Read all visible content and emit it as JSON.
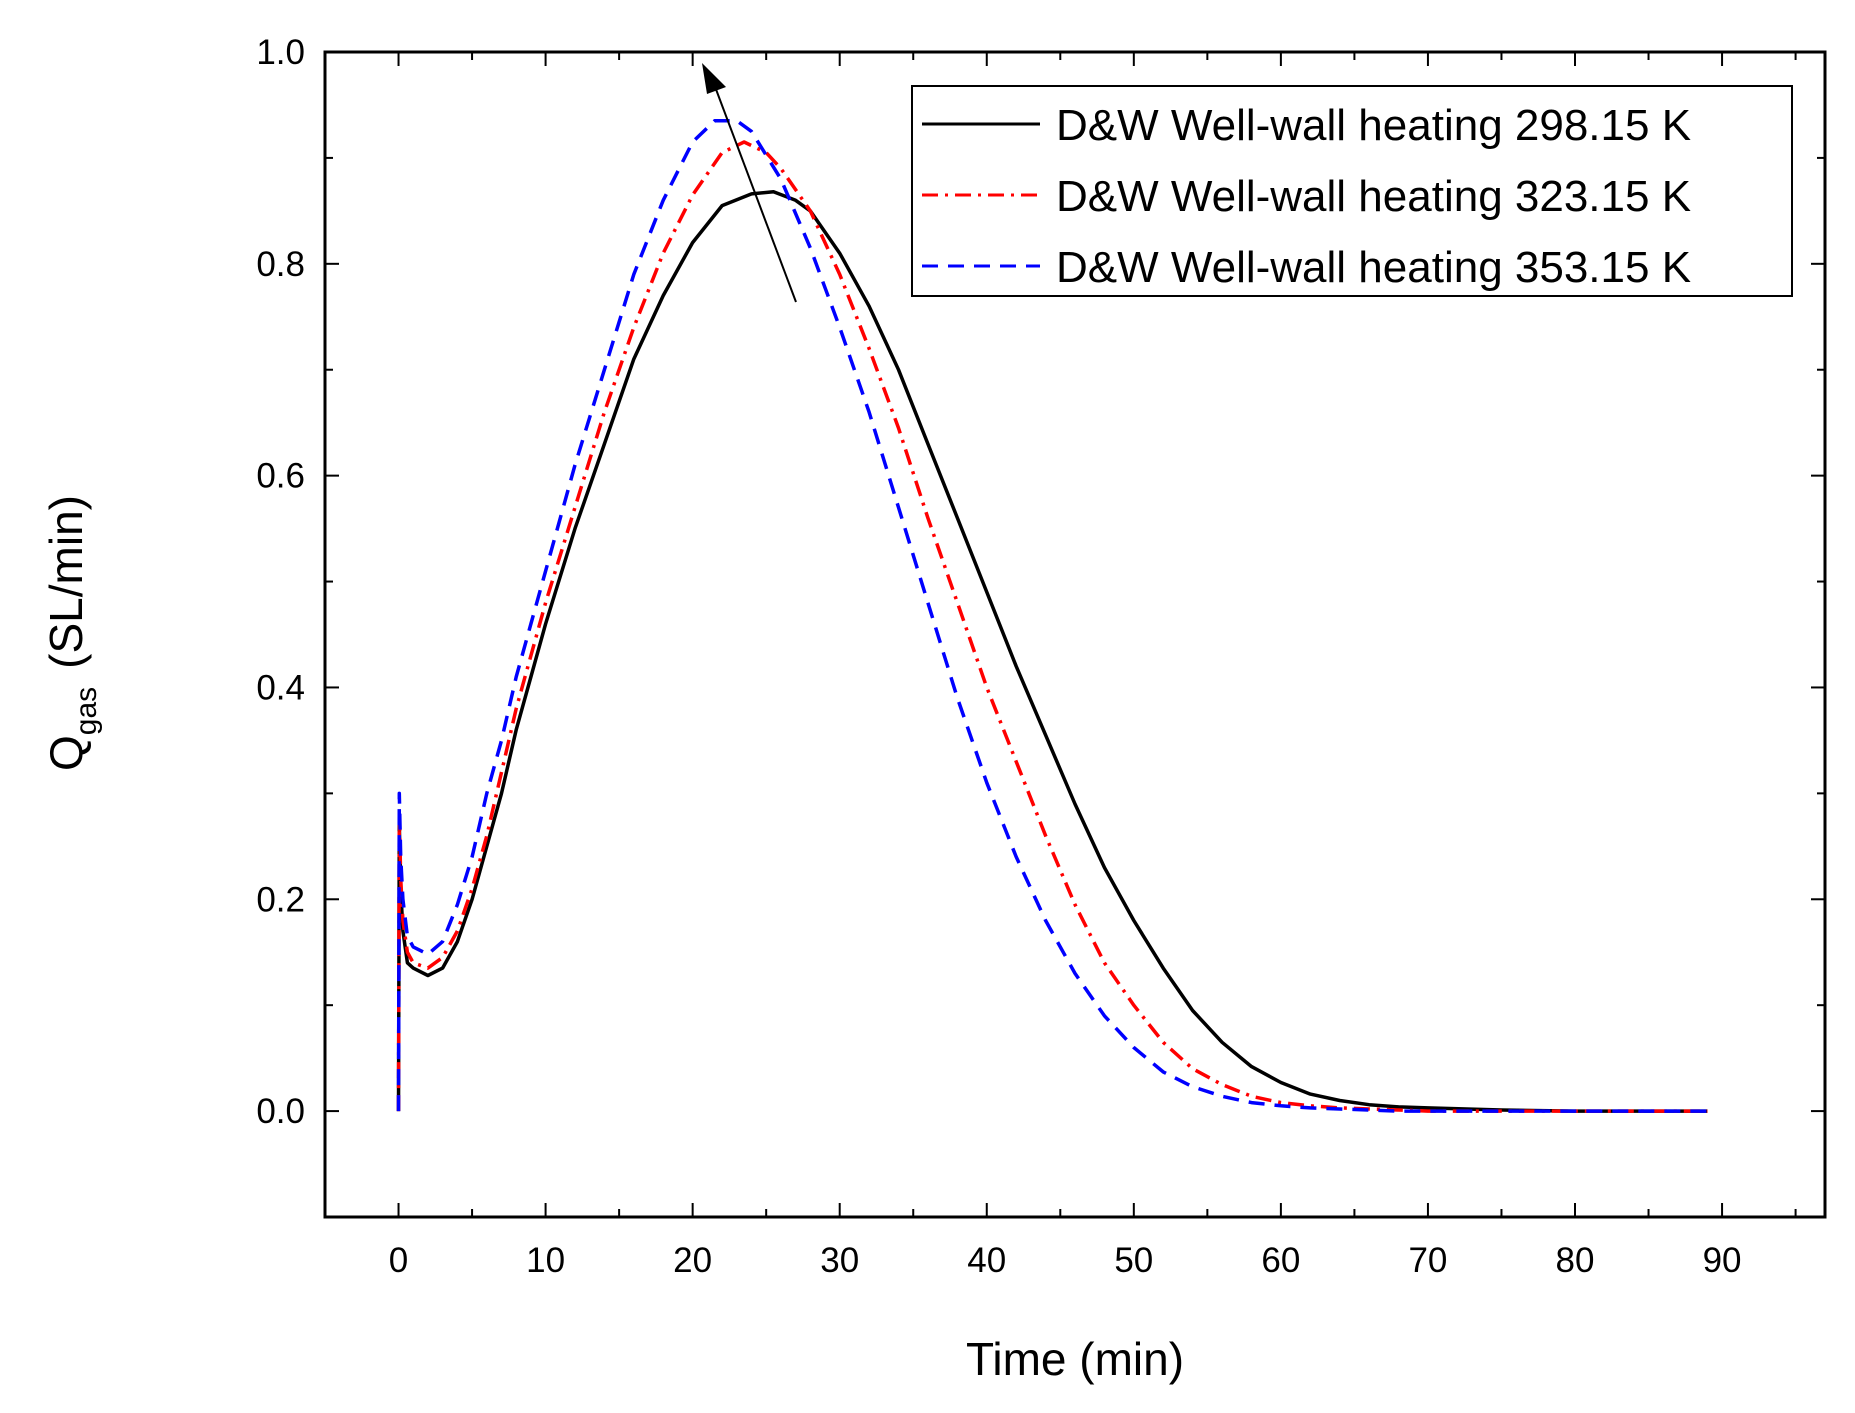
{
  "chart_data": {
    "type": "line",
    "title": "",
    "xlabel": "Time (min)",
    "ylabel_main": "Q",
    "ylabel_sub": "gas",
    "ylabel_unit": "(SL/min)",
    "xlim": [
      -5,
      97
    ],
    "ylim": [
      -0.1,
      1.0
    ],
    "xticks": [
      0,
      10,
      20,
      30,
      40,
      50,
      60,
      70,
      80,
      90
    ],
    "xtick_labels": [
      "0",
      "10",
      "20",
      "30",
      "40",
      "50",
      "60",
      "70",
      "80",
      "90"
    ],
    "yticks": [
      0.0,
      0.2,
      0.4,
      0.6,
      0.8,
      1.0
    ],
    "ytick_labels": [
      "0.0",
      "0.2",
      "0.4",
      "0.6",
      "0.8",
      "1.0"
    ],
    "legend_position": "top-right",
    "annotation": "arrow indicating increasing peak with heating temperature",
    "series": [
      {
        "name": "D&W Well-wall heating 298.15 K",
        "color": "#000000",
        "style": "solid",
        "x": [
          0,
          0.05,
          0.15,
          0.3,
          0.6,
          1,
          2,
          3,
          4,
          5,
          6,
          7,
          8,
          9,
          10,
          12,
          14,
          16,
          18,
          20,
          22,
          24,
          25.5,
          27,
          28,
          30,
          32,
          34,
          36,
          38,
          40,
          42,
          44,
          46,
          48,
          50,
          52,
          54,
          56,
          58,
          60,
          62,
          64,
          66,
          68,
          70,
          75,
          80,
          85,
          89
        ],
        "y": [
          0,
          0.27,
          0.21,
          0.17,
          0.14,
          0.135,
          0.128,
          0.135,
          0.16,
          0.2,
          0.25,
          0.3,
          0.36,
          0.41,
          0.46,
          0.55,
          0.63,
          0.71,
          0.77,
          0.82,
          0.855,
          0.866,
          0.868,
          0.86,
          0.85,
          0.81,
          0.76,
          0.7,
          0.63,
          0.56,
          0.49,
          0.42,
          0.355,
          0.29,
          0.23,
          0.18,
          0.135,
          0.095,
          0.065,
          0.042,
          0.027,
          0.016,
          0.01,
          0.006,
          0.004,
          0.003,
          0.001,
          0,
          0,
          0
        ]
      },
      {
        "name": "D&W Well-wall heating 323.15 K",
        "color": "#ff0000",
        "style": "dashdot",
        "x": [
          0,
          0.05,
          0.15,
          0.3,
          0.6,
          1,
          2,
          3,
          4,
          5,
          6,
          7,
          8,
          9,
          10,
          12,
          14,
          16,
          18,
          20,
          22,
          23.5,
          25,
          26,
          28,
          30,
          32,
          34,
          36,
          38,
          40,
          42,
          44,
          46,
          48,
          50,
          52,
          54,
          56,
          58,
          60,
          62,
          64,
          66,
          68,
          70,
          75,
          80,
          85,
          89
        ],
        "y": [
          0,
          0.28,
          0.22,
          0.18,
          0.15,
          0.14,
          0.135,
          0.145,
          0.17,
          0.21,
          0.26,
          0.32,
          0.38,
          0.43,
          0.48,
          0.57,
          0.66,
          0.74,
          0.81,
          0.865,
          0.905,
          0.915,
          0.905,
          0.89,
          0.85,
          0.79,
          0.72,
          0.645,
          0.56,
          0.48,
          0.4,
          0.33,
          0.26,
          0.195,
          0.14,
          0.1,
          0.065,
          0.04,
          0.025,
          0.014,
          0.008,
          0.005,
          0.003,
          0.002,
          0.001,
          0,
          0,
          0,
          0,
          0
        ]
      },
      {
        "name": "D&W Well-wall heating 353.15 K",
        "color": "#0000ff",
        "style": "dashed",
        "x": [
          0,
          0.05,
          0.15,
          0.3,
          0.6,
          1,
          2,
          3,
          4,
          5,
          6,
          7,
          8,
          9,
          10,
          12,
          14,
          16,
          18,
          20,
          21.5,
          23,
          24,
          26,
          28,
          30,
          32,
          34,
          36,
          38,
          40,
          42,
          44,
          46,
          48,
          50,
          52,
          54,
          56,
          58,
          60,
          62,
          64,
          66,
          68,
          70,
          75,
          80,
          85,
          89
        ],
        "y": [
          0,
          0.3,
          0.24,
          0.2,
          0.165,
          0.155,
          0.148,
          0.16,
          0.195,
          0.24,
          0.3,
          0.35,
          0.41,
          0.46,
          0.51,
          0.61,
          0.7,
          0.79,
          0.86,
          0.915,
          0.935,
          0.935,
          0.925,
          0.88,
          0.815,
          0.74,
          0.66,
          0.57,
          0.48,
          0.39,
          0.31,
          0.24,
          0.18,
          0.13,
          0.09,
          0.06,
          0.037,
          0.023,
          0.014,
          0.008,
          0.005,
          0.003,
          0.002,
          0.001,
          0,
          0,
          0,
          0,
          0,
          0
        ]
      }
    ]
  }
}
